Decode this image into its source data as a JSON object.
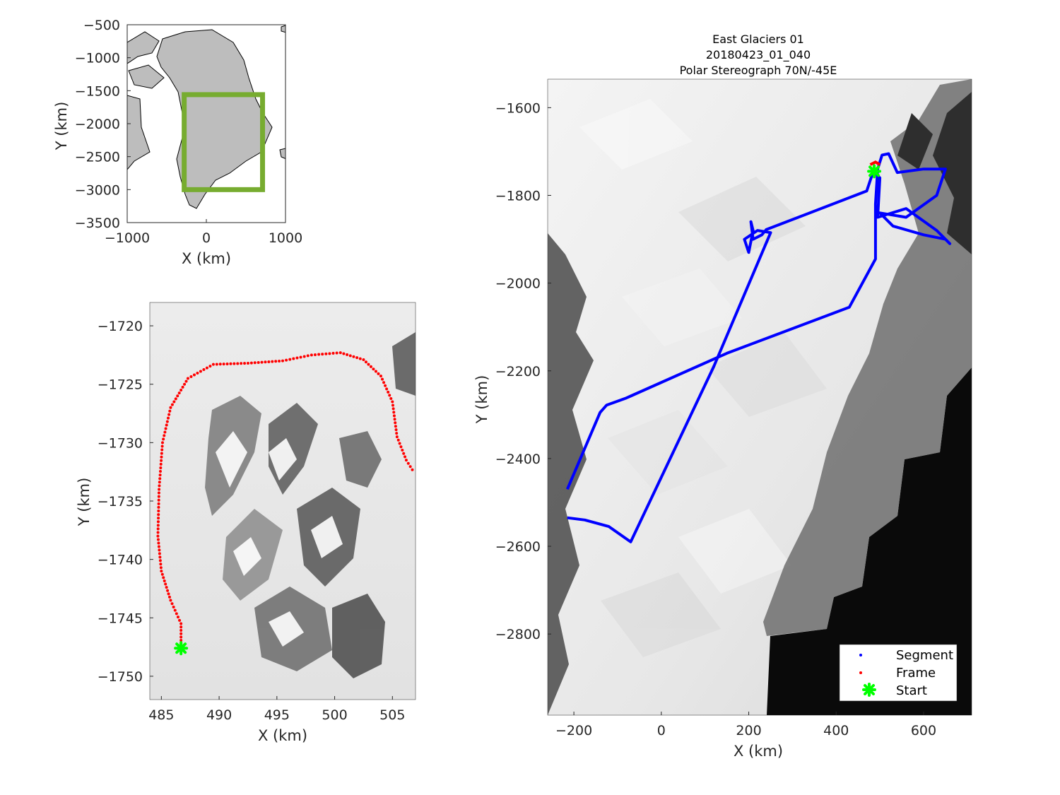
{
  "overview": {
    "xlabel": "X (km)",
    "ylabel": "Y (km)",
    "xticks": [
      "−1000",
      "0",
      "1000"
    ],
    "yticks": [
      "−500",
      "−1000",
      "−1500",
      "−2000",
      "−2500",
      "−3000",
      "−3500"
    ],
    "xlim": [
      -1000,
      1000
    ],
    "ylim": [
      -3500,
      -500
    ],
    "box_color": "#77ac30",
    "box_extent_km": {
      "x": [
        -280,
        710
      ],
      "y": [
        -3000,
        -1560
      ]
    },
    "land_color": "#bdbdbd"
  },
  "zoom": {
    "xlabel": "X (km)",
    "ylabel": "Y (km)",
    "xticks": [
      "485",
      "490",
      "495",
      "500",
      "505"
    ],
    "yticks": [
      "−1720",
      "−1725",
      "−1730",
      "−1735",
      "−1740",
      "−1745",
      "−1750"
    ],
    "xlim": [
      484.0,
      507.0
    ],
    "ylim": [
      -1752,
      -1718
    ],
    "frame_color": "#ff0000",
    "start_color": "#00ff00",
    "frame_path_km": [
      [
        486.7,
        -1747.5
      ],
      [
        486.7,
        -1745.5
      ],
      [
        485.8,
        -1743.5
      ],
      [
        485.0,
        -1741.0
      ],
      [
        484.7,
        -1738.0
      ],
      [
        484.8,
        -1734.0
      ],
      [
        485.1,
        -1730.0
      ],
      [
        485.8,
        -1727.0
      ],
      [
        487.3,
        -1724.5
      ],
      [
        489.5,
        -1723.3
      ],
      [
        492.5,
        -1723.2
      ],
      [
        495.5,
        -1723.0
      ],
      [
        498.0,
        -1722.5
      ],
      [
        500.5,
        -1722.3
      ],
      [
        502.5,
        -1722.9
      ],
      [
        504.0,
        -1724.3
      ],
      [
        505.0,
        -1726.5
      ],
      [
        505.4,
        -1729.5
      ],
      [
        506.2,
        -1731.5
      ],
      [
        506.9,
        -1732.6
      ]
    ],
    "start_km": [
      486.7,
      -1747.6
    ]
  },
  "main": {
    "title_lines": [
      "East Glaciers 01",
      "20180423_01_040",
      "Polar Stereograph 70N/-45E"
    ],
    "xlabel": "X (km)",
    "ylabel": "Y (km)",
    "xticks": [
      "−200",
      "0",
      "200",
      "400",
      "600"
    ],
    "yticks": [
      "−1600",
      "−1800",
      "−2000",
      "−2200",
      "−2400",
      "−2600",
      "−2800"
    ],
    "xlim": [
      -260,
      710
    ],
    "ylim": [
      -2985,
      -1535
    ],
    "segment_color": "#0000ff",
    "frame_color": "#ff0000",
    "start_color": "#00ff00",
    "segment_path_km": [
      [
        -215,
        -2470
      ],
      [
        -140,
        -2295
      ],
      [
        -125,
        -2278
      ],
      [
        -80,
        -2262
      ],
      [
        150,
        -2160
      ],
      [
        430,
        -2055
      ],
      [
        490,
        -1945
      ],
      [
        490,
        -1820
      ],
      [
        495,
        -1740
      ],
      [
        505,
        -1708
      ],
      [
        520,
        -1705
      ],
      [
        540,
        -1748
      ],
      [
        600,
        -1740
      ],
      [
        650,
        -1740
      ],
      [
        630,
        -1800
      ],
      [
        560,
        -1850
      ],
      [
        500,
        -1840
      ],
      [
        530,
        -1870
      ],
      [
        600,
        -1890
      ],
      [
        650,
        -1900
      ],
      [
        660,
        -1910
      ],
      [
        630,
        -1880
      ],
      [
        560,
        -1830
      ],
      [
        495,
        -1850
      ],
      [
        500,
        -1760
      ],
      [
        485,
        -1745
      ],
      [
        470,
        -1790
      ],
      [
        240,
        -1878
      ],
      [
        230,
        -1890
      ],
      [
        210,
        -1900
      ],
      [
        205,
        -1860
      ],
      [
        210,
        -1880
      ],
      [
        200,
        -1930
      ],
      [
        190,
        -1900
      ],
      [
        220,
        -1880
      ],
      [
        250,
        -1885
      ],
      [
        120,
        -2190
      ],
      [
        -70,
        -2590
      ],
      [
        -120,
        -2555
      ],
      [
        -175,
        -2540
      ],
      [
        -215,
        -2535
      ]
    ],
    "frame_path_km": [
      [
        478,
        -1730
      ],
      [
        490,
        -1724
      ],
      [
        500,
        -1730
      ]
    ],
    "start_km": [
      487,
      -1745
    ],
    "legend": [
      {
        "label": "Segment",
        "marker": "dot",
        "color": "#0000ff"
      },
      {
        "label": "Frame",
        "marker": "dot",
        "color": "#ff0000"
      },
      {
        "label": "Start",
        "marker": "x",
        "color": "#00ff00"
      }
    ]
  }
}
